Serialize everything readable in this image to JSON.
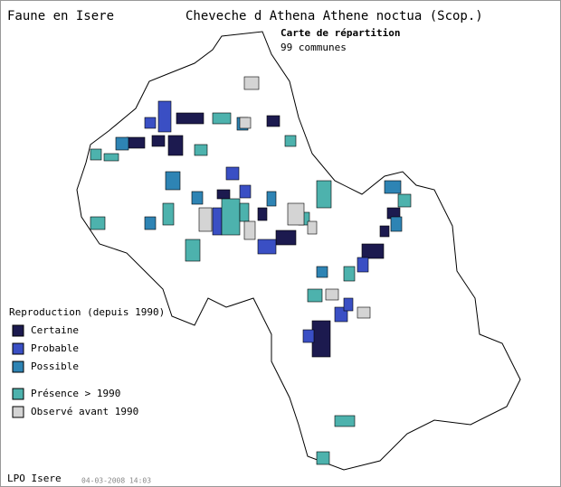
{
  "header": {
    "site": "Faune en Isere",
    "species": "Cheveche d Athena  Athene noctua (Scop.)",
    "map_title": "Carte de répartition",
    "count": "99 communes"
  },
  "legend": {
    "title": "Reproduction (depuis 1990)",
    "items": [
      {
        "label": "Certaine",
        "color": "#1c1a4f"
      },
      {
        "label": "Probable",
        "color": "#3a4fc4"
      },
      {
        "label": "Possible",
        "color": "#2e84b4"
      },
      {
        "label": "Présence > 1990",
        "color": "#4db2ad"
      },
      {
        "label": "Observé avant 1990",
        "color": "#d4d4d4"
      }
    ]
  },
  "footer": {
    "org": "LPO Isere",
    "date": "04-03-2008 14:03"
  }
}
